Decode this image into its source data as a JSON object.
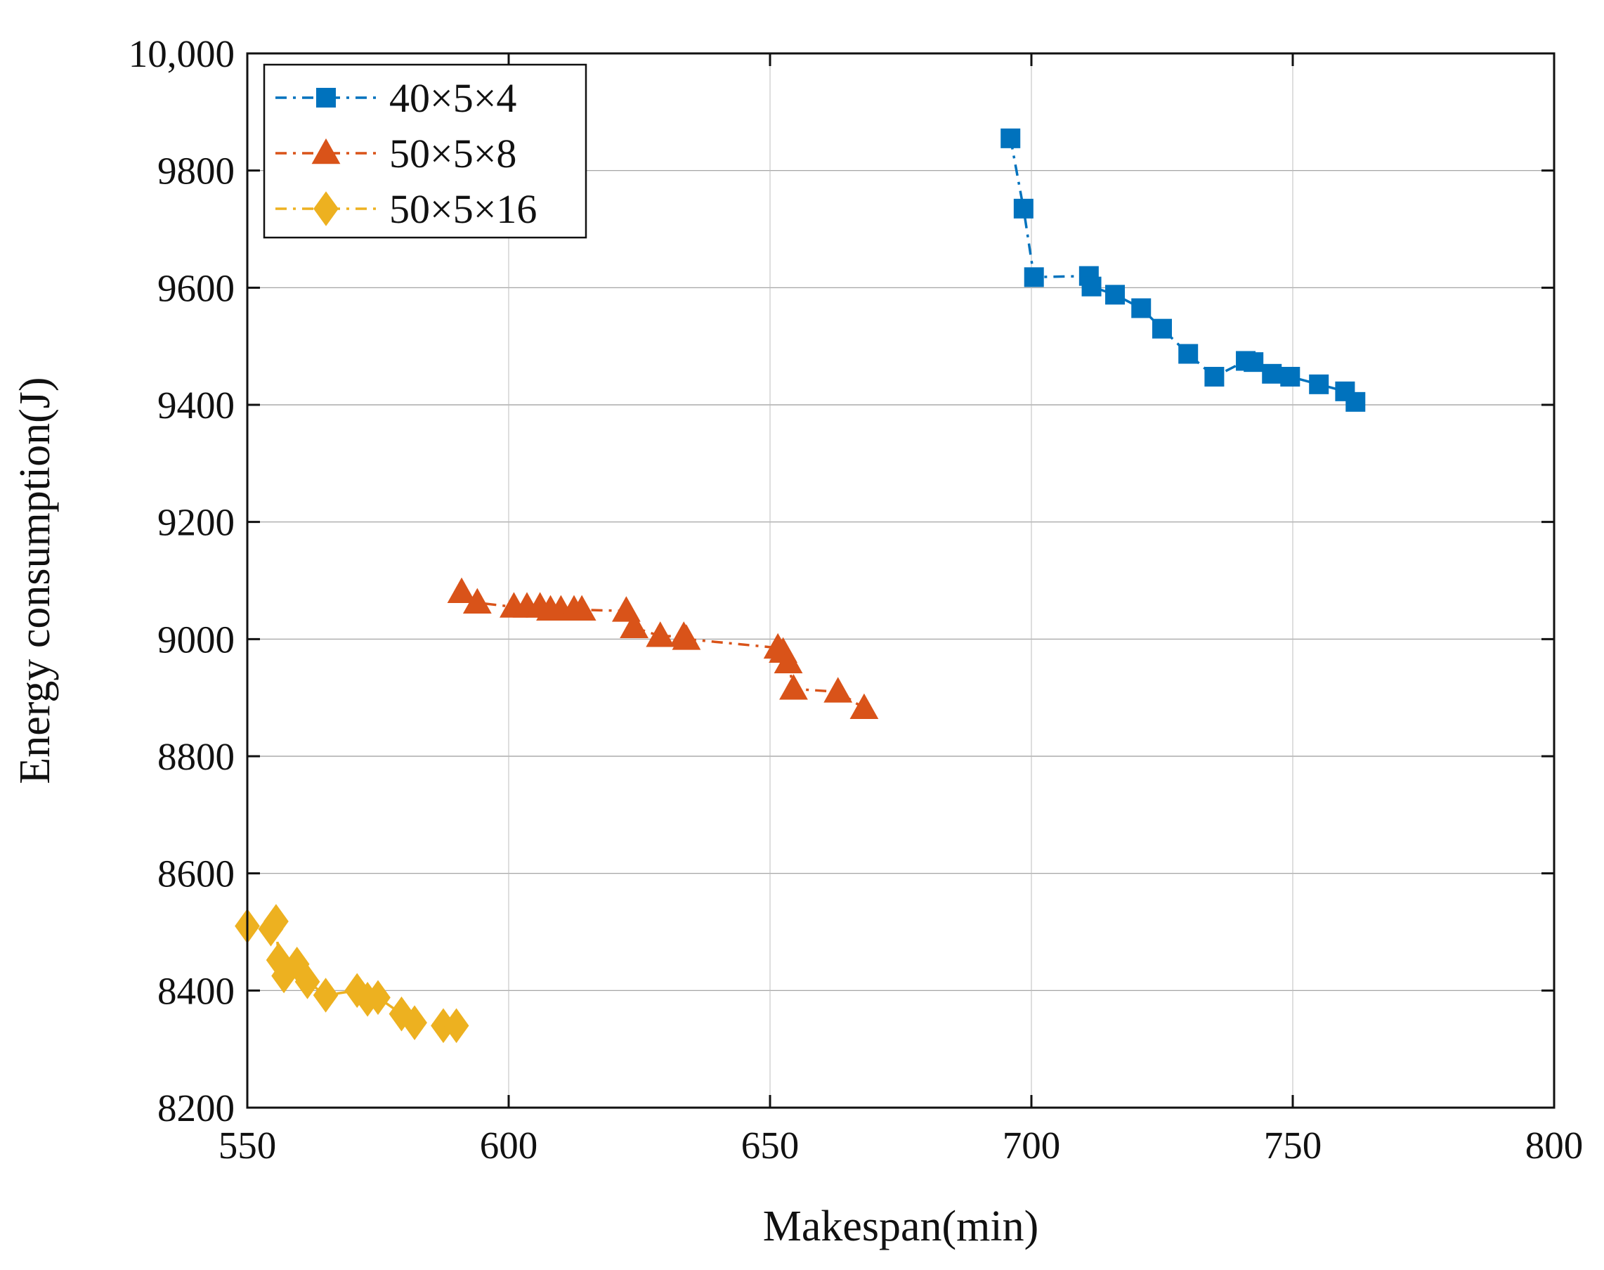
{
  "chart_data": {
    "type": "line",
    "title": "",
    "xlabel": "Makespan(min)",
    "ylabel": "Energy consumption(J)",
    "xlim": [
      550,
      800
    ],
    "ylim": [
      8200,
      10000
    ],
    "xticks": [
      550,
      600,
      650,
      700,
      750,
      800
    ],
    "xtick_labels": [
      "550",
      "600",
      "650",
      "700",
      "750",
      "800"
    ],
    "yticks": [
      8200,
      8400,
      8600,
      8800,
      9000,
      9200,
      9400,
      9600,
      9800,
      10000
    ],
    "ytick_labels": [
      "8200",
      "8400",
      "8600",
      "8800",
      "9000",
      "9200",
      "9400",
      "9600",
      "9800",
      "10,000"
    ],
    "legend_position": "top-left",
    "series": [
      {
        "name": "40×5×4",
        "color": "#0072BD",
        "marker": "square",
        "line_style": "dash-dot",
        "x": [
          696,
          698.5,
          700.5,
          711,
          711.5,
          716,
          721,
          725,
          730,
          735,
          741,
          742.5,
          746,
          749.5,
          755,
          760,
          762
        ],
        "y": [
          9855,
          9735,
          9618,
          9620,
          9602,
          9588,
          9565,
          9530,
          9487,
          9448,
          9475,
          9473,
          9453,
          9448,
          9435,
          9423,
          9405
        ]
      },
      {
        "name": "50×5×8",
        "color": "#D95319",
        "marker": "triangle",
        "line_style": "dash-dot",
        "x": [
          591,
          594,
          601,
          603.5,
          606,
          608,
          610,
          612.5,
          614,
          622.5,
          624,
          629,
          633.5,
          634,
          651.5,
          652.5,
          653.5,
          654.5,
          663,
          668
        ],
        "y": [
          9080,
          9062,
          9055,
          9055,
          9055,
          9050,
          9050,
          9050,
          9050,
          9048,
          9020,
          9005,
          9005,
          9000,
          8985,
          8978,
          8960,
          8915,
          8910,
          8882
        ]
      },
      {
        "name": "50×5×16",
        "color": "#EDB120",
        "marker": "diamond",
        "line_style": "dash-dot",
        "x": [
          550,
          554.5,
          555.5,
          556,
          557,
          559.5,
          561.5,
          565,
          571,
          573,
          575,
          579.5,
          582,
          587.5,
          590
        ],
        "y": [
          8510,
          8505,
          8518,
          8452,
          8425,
          8445,
          8415,
          8392,
          8400,
          8385,
          8388,
          8360,
          8345,
          8340,
          8340
        ]
      }
    ]
  }
}
